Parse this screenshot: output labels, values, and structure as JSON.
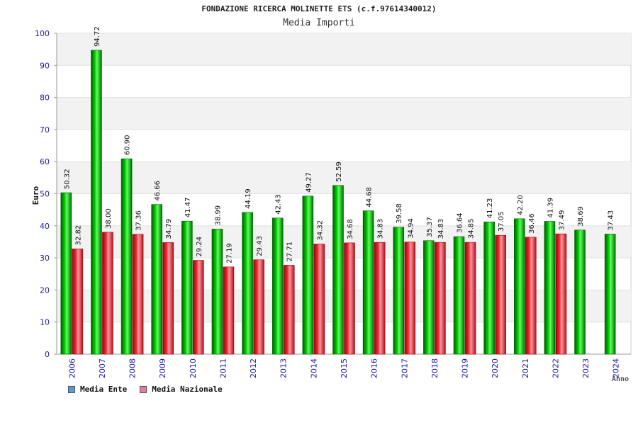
{
  "title": "FONDAZIONE RICERCA MOLINETTE ETS (c.f.97614340012)",
  "subtitle": "Media Importi",
  "chart_data": {
    "type": "bar",
    "title": "FONDAZIONE RICERCA MOLINETTE ETS (c.f.97614340012)",
    "subtitle": "Media Importi",
    "xlabel": "Anno",
    "ylabel": "Euro",
    "ylim": [
      0,
      100
    ],
    "yticks": [
      0,
      10,
      20,
      30,
      40,
      50,
      60,
      70,
      80,
      90,
      100
    ],
    "grid": true,
    "legend_position": "bottom-left",
    "categories": [
      "2006",
      "2007",
      "2008",
      "2009",
      "2010",
      "2011",
      "2012",
      "2013",
      "2014",
      "2015",
      "2016",
      "2017",
      "2018",
      "2019",
      "2020",
      "2021",
      "2022",
      "2023",
      "2024"
    ],
    "series": [
      {
        "name": "Media Ente",
        "color": "#00b300",
        "legend_color": "#5b9bd5",
        "values": [
          50.32,
          94.72,
          60.9,
          46.66,
          41.47,
          38.99,
          44.19,
          42.43,
          49.27,
          52.59,
          44.68,
          39.58,
          35.37,
          36.64,
          41.23,
          42.2,
          41.39,
          38.69,
          37.43
        ],
        "labels": [
          "50.32",
          "94.72",
          "60.90",
          "46.66",
          "41.47",
          "38.99",
          "44.19",
          "42.43",
          "49.27",
          "52.59",
          "44.68",
          "39.58",
          "35.37",
          "36.64",
          "41.23",
          "42.20",
          "41.39",
          "38.69",
          "37.43"
        ]
      },
      {
        "name": "Media Nazionale",
        "color": "#e8242a",
        "legend_color": "#e87aa8",
        "values": [
          32.82,
          38.0,
          37.36,
          34.79,
          29.24,
          27.19,
          29.43,
          27.71,
          34.32,
          34.68,
          34.83,
          34.94,
          34.83,
          34.85,
          37.05,
          36.46,
          37.49,
          null,
          null
        ],
        "labels": [
          "32.82",
          "38.00",
          "37.36",
          "34.79",
          "29.24",
          "27.19",
          "29.43",
          "27.71",
          "34.32",
          "34.68",
          "34.83",
          "34.94",
          "34.83",
          "34.85",
          "37.05",
          "36.46",
          "37.49",
          "",
          ""
        ]
      }
    ]
  }
}
